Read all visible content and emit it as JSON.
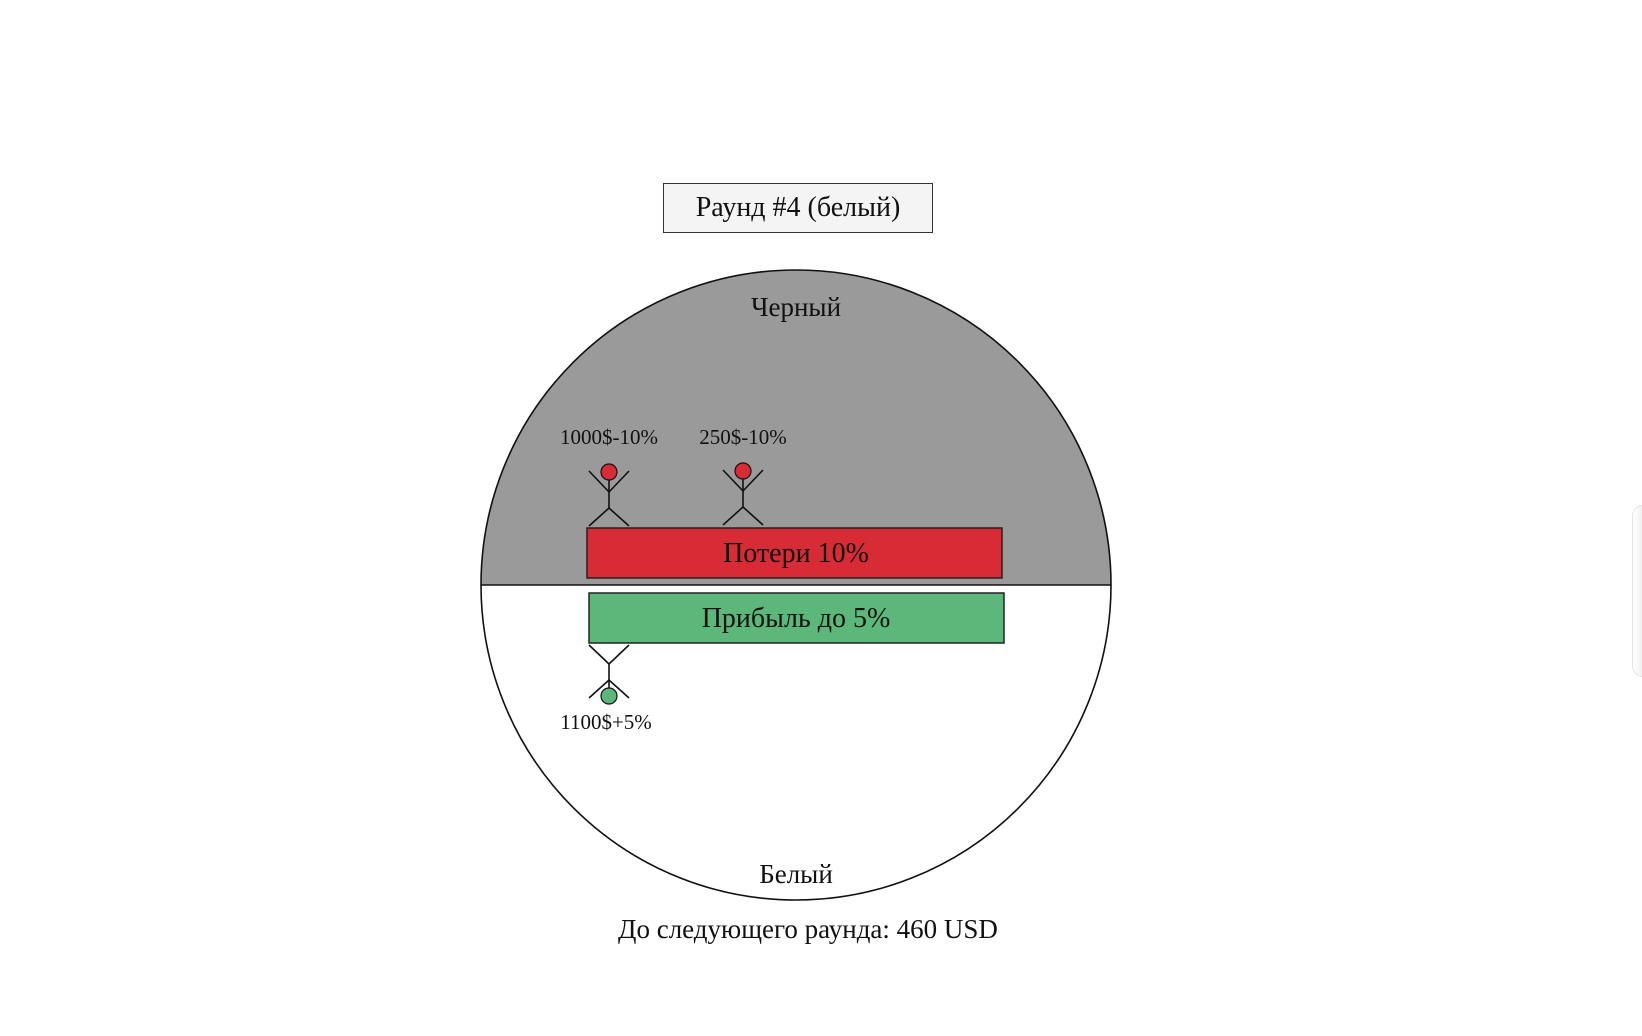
{
  "round": {
    "title": "Раунд #4 (белый)"
  },
  "wheel": {
    "top_label": "Черный",
    "bottom_label": "Белый",
    "top_color": "#9a9a9a",
    "bottom_color": "#ffffff"
  },
  "bars": {
    "loss_label": "Потери 10%",
    "loss_color": "#d72b35",
    "profit_label": "Прибыль до 5%",
    "profit_color": "#5bb77a"
  },
  "players": {
    "black": [
      {
        "label": "1000$-10%",
        "head_color": "#d72b35"
      },
      {
        "label": "250$-10%",
        "head_color": "#d72b35"
      }
    ],
    "white": [
      {
        "label": "1100$+5%",
        "head_color": "#5bb77a"
      }
    ]
  },
  "footer": {
    "countdown": "До следующего раунда: 460 USD"
  }
}
